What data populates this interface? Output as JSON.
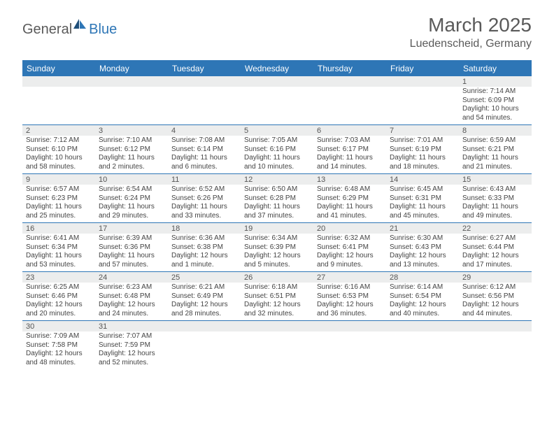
{
  "logo": {
    "part1": "General",
    "part2": "Blue"
  },
  "title": "March 2025",
  "location": "Luedenscheid, Germany",
  "colors": {
    "header_bg": "#2e76b6",
    "header_text": "#ffffff",
    "daynum_bg": "#eceded",
    "text": "#444444",
    "border": "#2e76b6"
  },
  "dayNames": [
    "Sunday",
    "Monday",
    "Tuesday",
    "Wednesday",
    "Thursday",
    "Friday",
    "Saturday"
  ],
  "weeks": [
    [
      null,
      null,
      null,
      null,
      null,
      null,
      {
        "n": "1",
        "sr": "7:14 AM",
        "ss": "6:09 PM",
        "dl": "10 hours and 54 minutes."
      }
    ],
    [
      {
        "n": "2",
        "sr": "7:12 AM",
        "ss": "6:10 PM",
        "dl": "10 hours and 58 minutes."
      },
      {
        "n": "3",
        "sr": "7:10 AM",
        "ss": "6:12 PM",
        "dl": "11 hours and 2 minutes."
      },
      {
        "n": "4",
        "sr": "7:08 AM",
        "ss": "6:14 PM",
        "dl": "11 hours and 6 minutes."
      },
      {
        "n": "5",
        "sr": "7:05 AM",
        "ss": "6:16 PM",
        "dl": "11 hours and 10 minutes."
      },
      {
        "n": "6",
        "sr": "7:03 AM",
        "ss": "6:17 PM",
        "dl": "11 hours and 14 minutes."
      },
      {
        "n": "7",
        "sr": "7:01 AM",
        "ss": "6:19 PM",
        "dl": "11 hours and 18 minutes."
      },
      {
        "n": "8",
        "sr": "6:59 AM",
        "ss": "6:21 PM",
        "dl": "11 hours and 21 minutes."
      }
    ],
    [
      {
        "n": "9",
        "sr": "6:57 AM",
        "ss": "6:23 PM",
        "dl": "11 hours and 25 minutes."
      },
      {
        "n": "10",
        "sr": "6:54 AM",
        "ss": "6:24 PM",
        "dl": "11 hours and 29 minutes."
      },
      {
        "n": "11",
        "sr": "6:52 AM",
        "ss": "6:26 PM",
        "dl": "11 hours and 33 minutes."
      },
      {
        "n": "12",
        "sr": "6:50 AM",
        "ss": "6:28 PM",
        "dl": "11 hours and 37 minutes."
      },
      {
        "n": "13",
        "sr": "6:48 AM",
        "ss": "6:29 PM",
        "dl": "11 hours and 41 minutes."
      },
      {
        "n": "14",
        "sr": "6:45 AM",
        "ss": "6:31 PM",
        "dl": "11 hours and 45 minutes."
      },
      {
        "n": "15",
        "sr": "6:43 AM",
        "ss": "6:33 PM",
        "dl": "11 hours and 49 minutes."
      }
    ],
    [
      {
        "n": "16",
        "sr": "6:41 AM",
        "ss": "6:34 PM",
        "dl": "11 hours and 53 minutes."
      },
      {
        "n": "17",
        "sr": "6:39 AM",
        "ss": "6:36 PM",
        "dl": "11 hours and 57 minutes."
      },
      {
        "n": "18",
        "sr": "6:36 AM",
        "ss": "6:38 PM",
        "dl": "12 hours and 1 minute."
      },
      {
        "n": "19",
        "sr": "6:34 AM",
        "ss": "6:39 PM",
        "dl": "12 hours and 5 minutes."
      },
      {
        "n": "20",
        "sr": "6:32 AM",
        "ss": "6:41 PM",
        "dl": "12 hours and 9 minutes."
      },
      {
        "n": "21",
        "sr": "6:30 AM",
        "ss": "6:43 PM",
        "dl": "12 hours and 13 minutes."
      },
      {
        "n": "22",
        "sr": "6:27 AM",
        "ss": "6:44 PM",
        "dl": "12 hours and 17 minutes."
      }
    ],
    [
      {
        "n": "23",
        "sr": "6:25 AM",
        "ss": "6:46 PM",
        "dl": "12 hours and 20 minutes."
      },
      {
        "n": "24",
        "sr": "6:23 AM",
        "ss": "6:48 PM",
        "dl": "12 hours and 24 minutes."
      },
      {
        "n": "25",
        "sr": "6:21 AM",
        "ss": "6:49 PM",
        "dl": "12 hours and 28 minutes."
      },
      {
        "n": "26",
        "sr": "6:18 AM",
        "ss": "6:51 PM",
        "dl": "12 hours and 32 minutes."
      },
      {
        "n": "27",
        "sr": "6:16 AM",
        "ss": "6:53 PM",
        "dl": "12 hours and 36 minutes."
      },
      {
        "n": "28",
        "sr": "6:14 AM",
        "ss": "6:54 PM",
        "dl": "12 hours and 40 minutes."
      },
      {
        "n": "29",
        "sr": "6:12 AM",
        "ss": "6:56 PM",
        "dl": "12 hours and 44 minutes."
      }
    ],
    [
      {
        "n": "30",
        "sr": "7:09 AM",
        "ss": "7:58 PM",
        "dl": "12 hours and 48 minutes."
      },
      {
        "n": "31",
        "sr": "7:07 AM",
        "ss": "7:59 PM",
        "dl": "12 hours and 52 minutes."
      },
      null,
      null,
      null,
      null,
      null
    ]
  ],
  "labels": {
    "sunrise": "Sunrise:",
    "sunset": "Sunset:",
    "daylight": "Daylight:"
  }
}
